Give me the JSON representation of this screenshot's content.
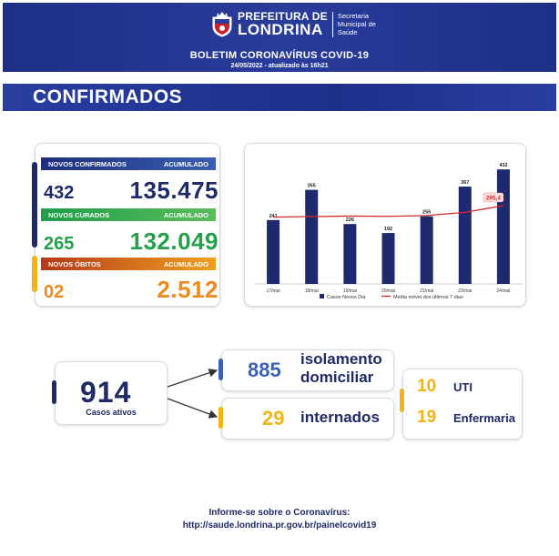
{
  "header": {
    "logo_line1": "PREFEITURA DE",
    "logo_line2": "LONDRINA",
    "secretaria": [
      "Secretaria",
      "Municipal de",
      "Saúde"
    ],
    "title": "BOLETIM CORONAVÍRUS COVID-19",
    "date": "24/05/2022 - atualizado às 16h21"
  },
  "section_title": "CONFIRMADOS",
  "stats": {
    "confirmed": {
      "label": "NOVOS CONFIRMADOS",
      "acc_label": "ACUMULADO",
      "new": "432",
      "total": "135.475"
    },
    "recovered": {
      "label": "NOVOS CURADOS",
      "acc_label": "ACUMULADO",
      "new": "265",
      "total": "132.049"
    },
    "deaths": {
      "label": "NOVOS ÓBITOS",
      "acc_label": "ACUMULADO",
      "new": "02",
      "total": "2.512"
    }
  },
  "chart_data": {
    "type": "bar",
    "categories": [
      "17/mai",
      "18/mai",
      "19/mai",
      "20/mai",
      "21/mai",
      "23/mai",
      "24/mai"
    ],
    "series": [
      {
        "name": "Casos Novos Dia",
        "type": "bar",
        "values": [
          241,
          355,
          226,
          192,
          255,
          367,
          432
        ]
      },
      {
        "name": "Média móvel dos últimos 7 dias",
        "type": "line",
        "values": [
          null,
          null,
          null,
          null,
          null,
          null,
          295.4
        ]
      }
    ],
    "moving_average_label": "295,4",
    "bar_labels": [
      "241",
      "355",
      "226",
      "192",
      "255",
      "367",
      "432"
    ],
    "colors": {
      "bar": "#1f2a6e",
      "line": "#d22b2b"
    }
  },
  "active": {
    "number": "914",
    "label": "Casos ativos"
  },
  "isolation": {
    "number": "885",
    "label_line1": "isolamento",
    "label_line2": "domiciliar"
  },
  "hospitalized": {
    "number": "29",
    "label": "internados"
  },
  "icu": {
    "number": "10",
    "label": "UTI"
  },
  "ward": {
    "number": "19",
    "label": "Enfermaria"
  },
  "footer": {
    "line1": "Informe-se sobre o Coronavírus:",
    "line2": "http://saude.londrina.pr.gov.br/painelcovid19"
  }
}
